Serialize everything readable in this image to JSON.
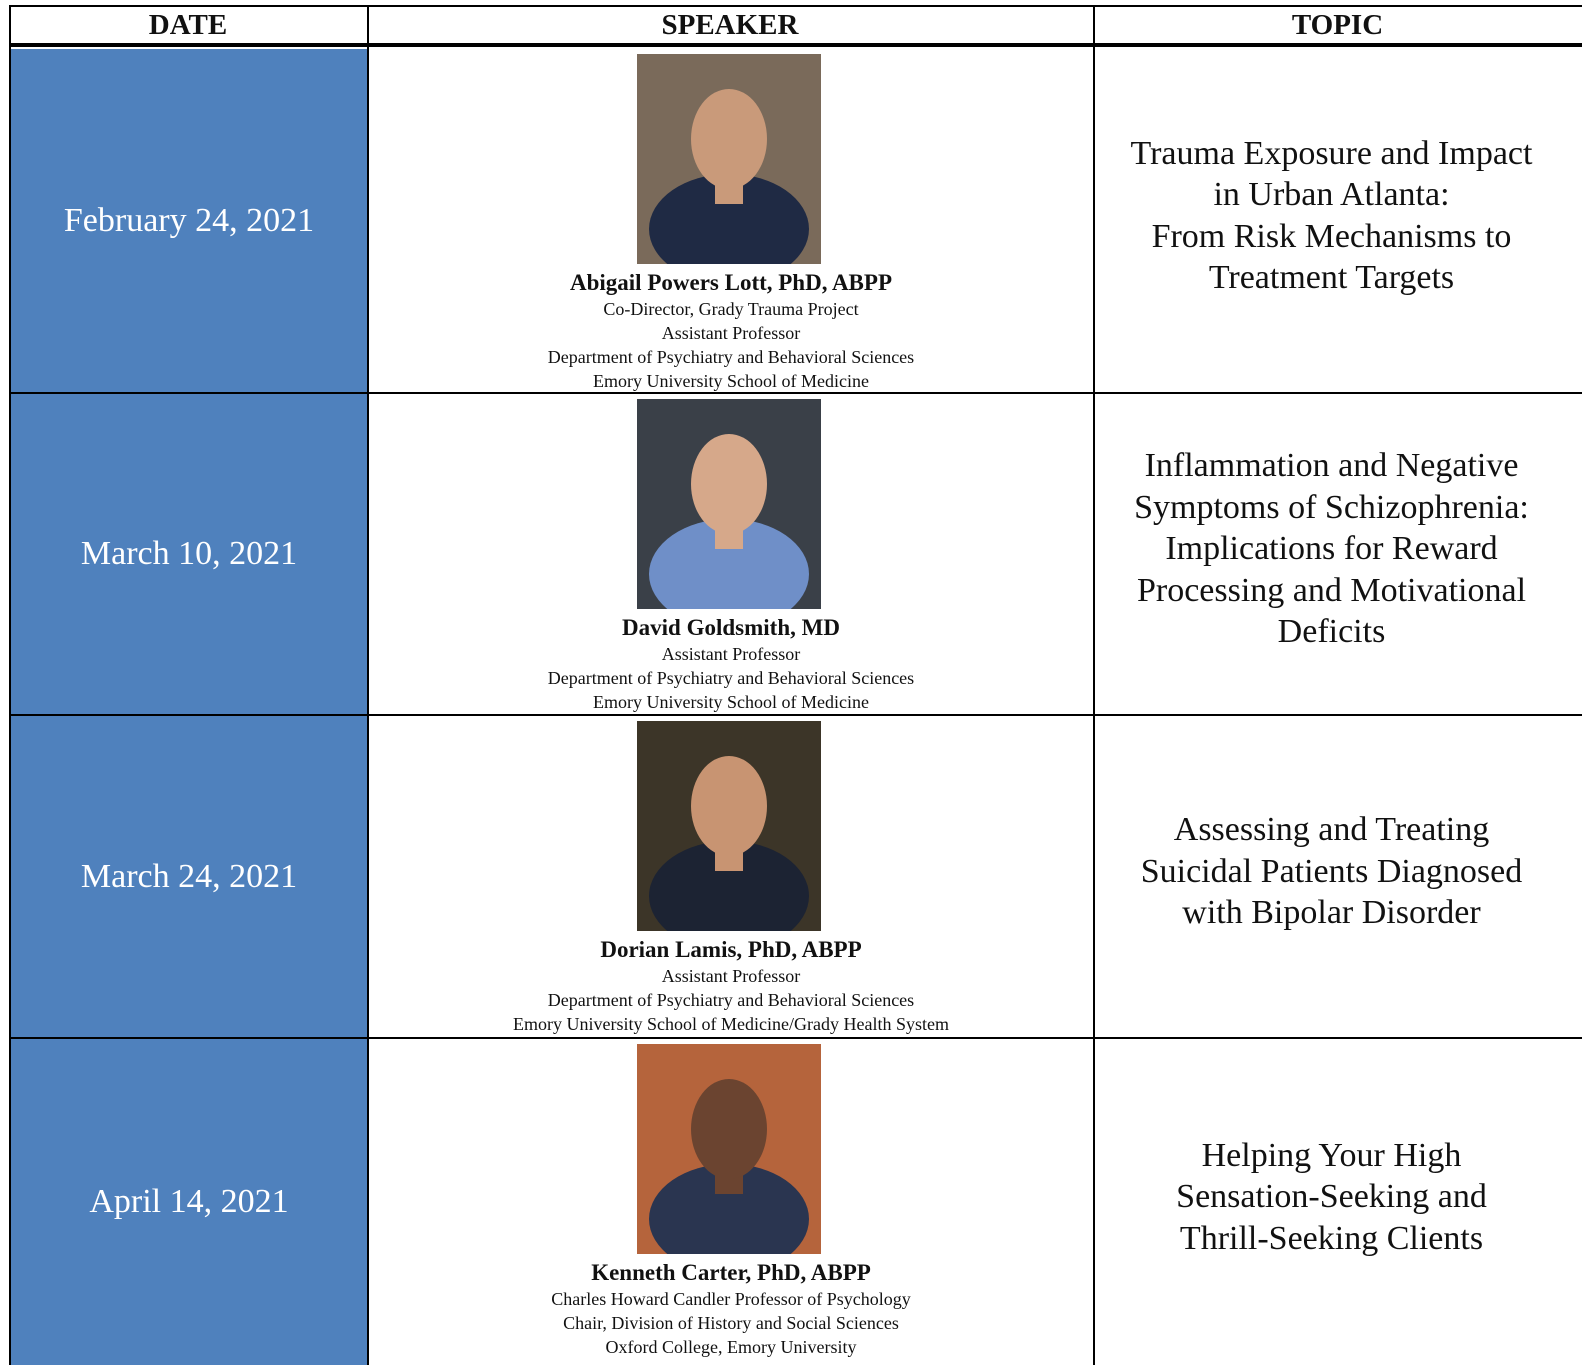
{
  "table": {
    "header": [
      "DATE",
      "SPEAKER",
      "TOPIC"
    ],
    "rows": [
      {
        "date": "February 24, 2021",
        "speaker": {
          "name": "Abigail Powers Lott, PhD, ABPP",
          "lines": [
            "Co-Director, Grady Trauma Project",
            "Assistant Professor",
            "Department of Psychiatry and Behavioral Sciences",
            "Emory University School of Medicine"
          ]
        },
        "topic": [
          "Trauma Exposure and Impact",
          "in Urban Atlanta:",
          "From Risk Mechanisms to",
          "Treatment Targets"
        ]
      },
      {
        "date": "March 10, 2021",
        "speaker": {
          "name": "David Goldsmith, MD",
          "lines": [
            "Assistant Professor",
            "Department of Psychiatry and Behavioral Sciences",
            "Emory University School of Medicine"
          ]
        },
        "topic": [
          "Inflammation and Negative",
          "Symptoms of Schizophrenia:",
          "Implications for Reward",
          "Processing and Motivational",
          "Deficits"
        ]
      },
      {
        "date": "March 24, 2021",
        "speaker": {
          "name": "Dorian Lamis, PhD, ABPP",
          "lines": [
            "Assistant Professor",
            "Department of Psychiatry and Behavioral Sciences",
            "Emory University School of Medicine/Grady Health System"
          ]
        },
        "topic": [
          "Assessing and Treating",
          "Suicidal Patients Diagnosed",
          "with Bipolar Disorder"
        ]
      },
      {
        "date": "April 14, 2021",
        "speaker": {
          "name": "Kenneth Carter, PhD, ABPP",
          "lines": [
            "Charles Howard Candler Professor of Psychology",
            "Chair, Division of History and Social Sciences",
            "Oxford College, Emory University"
          ]
        },
        "topic": [
          "Helping Your High",
          "Sensation-Seeking and",
          "Thrill-Seeking Clients"
        ]
      }
    ]
  }
}
